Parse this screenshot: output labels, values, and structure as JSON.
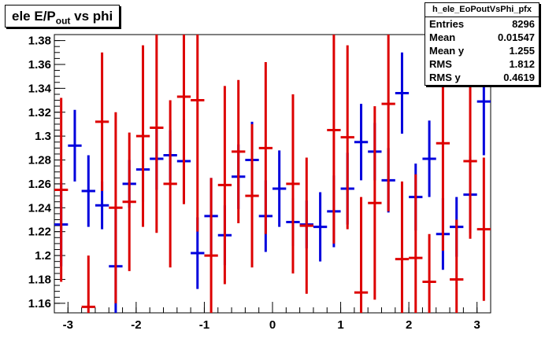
{
  "title": {
    "main": "ele E/P",
    "sub": "out",
    "rest": " vs phi"
  },
  "stats": {
    "name": "h_ele_EoPoutVsPhi_pfx",
    "rows": [
      {
        "label": "Entries",
        "value": "8296"
      },
      {
        "label": "Mean",
        "value": "0.01547"
      },
      {
        "label": "Mean y",
        "value": "1.255"
      },
      {
        "label": "RMS",
        "value": "1.812"
      },
      {
        "label": "RMS y",
        "value": "0.4619"
      }
    ]
  },
  "chart_data": {
    "type": "scatter",
    "xlim": [
      -3.2,
      3.2
    ],
    "ylim": [
      1.152,
      1.385
    ],
    "x_ticks": [
      -3,
      -2,
      -1,
      0,
      1,
      2,
      3
    ],
    "y_ticks": [
      1.16,
      1.18,
      1.2,
      1.22,
      1.24,
      1.26,
      1.28,
      1.3,
      1.32,
      1.34,
      1.36,
      1.38
    ],
    "y_tick_labels": [
      "1.16",
      "1.18",
      "1.2",
      "1.22",
      "1.24",
      "1.26",
      "1.28",
      "1.3",
      "1.32",
      "1.34",
      "1.36",
      "1.38"
    ],
    "x_bin_halfwidth": 0.1,
    "colors": {
      "blue": "#0000dd",
      "red": "#dd0000"
    },
    "points": [
      {
        "x": -3.1,
        "y": 1.226,
        "err": 0.035,
        "color": "blue"
      },
      {
        "x": -3.1,
        "y": 1.255,
        "err": 0.077,
        "color": "red"
      },
      {
        "x": -2.9,
        "y": 1.292,
        "err": 0.03,
        "color": "blue"
      },
      {
        "x": -2.7,
        "y": 1.254,
        "err": 0.03,
        "color": "blue"
      },
      {
        "x": -2.7,
        "y": 1.157,
        "err": 0.043,
        "color": "red"
      },
      {
        "x": -2.5,
        "y": 1.242,
        "err": 0.02,
        "color": "blue"
      },
      {
        "x": -2.5,
        "y": 1.312,
        "err": 0.058,
        "color": "red"
      },
      {
        "x": -2.3,
        "y": 1.191,
        "err": 0.05,
        "color": "blue"
      },
      {
        "x": -2.3,
        "y": 1.24,
        "err": 0.08,
        "color": "red"
      },
      {
        "x": -2.1,
        "y": 1.26,
        "err": 0.02,
        "color": "blue"
      },
      {
        "x": -2.1,
        "y": 1.245,
        "err": 0.058,
        "color": "red"
      },
      {
        "x": -1.9,
        "y": 1.272,
        "err": 0.027,
        "color": "blue"
      },
      {
        "x": -1.9,
        "y": 1.3,
        "err": 0.076,
        "color": "red"
      },
      {
        "x": -1.7,
        "y": 1.281,
        "err": 0.026,
        "color": "blue"
      },
      {
        "x": -1.7,
        "y": 1.307,
        "err": 0.088,
        "color": "red"
      },
      {
        "x": -1.5,
        "y": 1.284,
        "err": 0.021,
        "color": "blue"
      },
      {
        "x": -1.5,
        "y": 1.26,
        "err": 0.07,
        "color": "red"
      },
      {
        "x": -1.3,
        "y": 1.279,
        "err": 0.035,
        "color": "blue"
      },
      {
        "x": -1.3,
        "y": 1.333,
        "err": 0.09,
        "color": "red"
      },
      {
        "x": -1.1,
        "y": 1.202,
        "err": 0.03,
        "color": "blue"
      },
      {
        "x": -1.1,
        "y": 1.33,
        "err": 0.11,
        "color": "red"
      },
      {
        "x": -0.9,
        "y": 1.233,
        "err": 0.032,
        "color": "blue"
      },
      {
        "x": -0.9,
        "y": 1.2,
        "err": 0.065,
        "color": "red"
      },
      {
        "x": -0.7,
        "y": 1.217,
        "err": 0.025,
        "color": "blue"
      },
      {
        "x": -0.7,
        "y": 1.259,
        "err": 0.083,
        "color": "red"
      },
      {
        "x": -0.5,
        "y": 1.266,
        "err": 0.027,
        "color": "blue"
      },
      {
        "x": -0.5,
        "y": 1.287,
        "err": 0.06,
        "color": "red"
      },
      {
        "x": -0.3,
        "y": 1.28,
        "err": 0.032,
        "color": "blue"
      },
      {
        "x": -0.3,
        "y": 1.25,
        "err": 0.06,
        "color": "red"
      },
      {
        "x": -0.1,
        "y": 1.233,
        "err": 0.03,
        "color": "blue"
      },
      {
        "x": -0.1,
        "y": 1.29,
        "err": 0.072,
        "color": "red"
      },
      {
        "x": 0.1,
        "y": 1.256,
        "err": 0.032,
        "color": "blue"
      },
      {
        "x": 0.3,
        "y": 1.228,
        "err": 0.02,
        "color": "blue"
      },
      {
        "x": 0.3,
        "y": 1.26,
        "err": 0.075,
        "color": "red"
      },
      {
        "x": 0.5,
        "y": 1.226,
        "err": 0.02,
        "color": "blue"
      },
      {
        "x": 0.5,
        "y": 1.225,
        "err": 0.057,
        "color": "red"
      },
      {
        "x": 0.7,
        "y": 1.224,
        "err": 0.029,
        "color": "blue"
      },
      {
        "x": 0.9,
        "y": 1.237,
        "err": 0.03,
        "color": "blue"
      },
      {
        "x": 0.9,
        "y": 1.305,
        "err": 0.095,
        "color": "red"
      },
      {
        "x": 1.1,
        "y": 1.256,
        "err": 0.03,
        "color": "blue"
      },
      {
        "x": 1.1,
        "y": 1.299,
        "err": 0.077,
        "color": "red"
      },
      {
        "x": 1.3,
        "y": 1.295,
        "err": 0.032,
        "color": "blue"
      },
      {
        "x": 1.3,
        "y": 1.169,
        "err": 0.08,
        "color": "red"
      },
      {
        "x": 1.5,
        "y": 1.287,
        "err": 0.024,
        "color": "blue"
      },
      {
        "x": 1.5,
        "y": 1.244,
        "err": 0.081,
        "color": "red"
      },
      {
        "x": 1.7,
        "y": 1.263,
        "err": 0.027,
        "color": "blue"
      },
      {
        "x": 1.7,
        "y": 1.327,
        "err": 0.09,
        "color": "red"
      },
      {
        "x": 1.9,
        "y": 1.336,
        "err": 0.034,
        "color": "blue"
      },
      {
        "x": 1.9,
        "y": 1.197,
        "err": 0.065,
        "color": "red"
      },
      {
        "x": 2.1,
        "y": 1.249,
        "err": 0.028,
        "color": "blue"
      },
      {
        "x": 2.1,
        "y": 1.198,
        "err": 0.07,
        "color": "red"
      },
      {
        "x": 2.3,
        "y": 1.281,
        "err": 0.032,
        "color": "blue"
      },
      {
        "x": 2.3,
        "y": 1.178,
        "err": 0.04,
        "color": "red"
      },
      {
        "x": 2.5,
        "y": 1.218,
        "err": 0.03,
        "color": "blue"
      },
      {
        "x": 2.5,
        "y": 1.294,
        "err": 0.09,
        "color": "red"
      },
      {
        "x": 2.7,
        "y": 1.224,
        "err": 0.025,
        "color": "blue"
      },
      {
        "x": 2.7,
        "y": 1.18,
        "err": 0.05,
        "color": "red"
      },
      {
        "x": 2.9,
        "y": 1.251,
        "err": 0.032,
        "color": "blue"
      },
      {
        "x": 2.9,
        "y": 1.279,
        "err": 0.065,
        "color": "red"
      },
      {
        "x": 3.1,
        "y": 1.329,
        "err": 0.045,
        "color": "blue"
      },
      {
        "x": 3.1,
        "y": 1.222,
        "err": 0.06,
        "color": "red"
      }
    ]
  }
}
